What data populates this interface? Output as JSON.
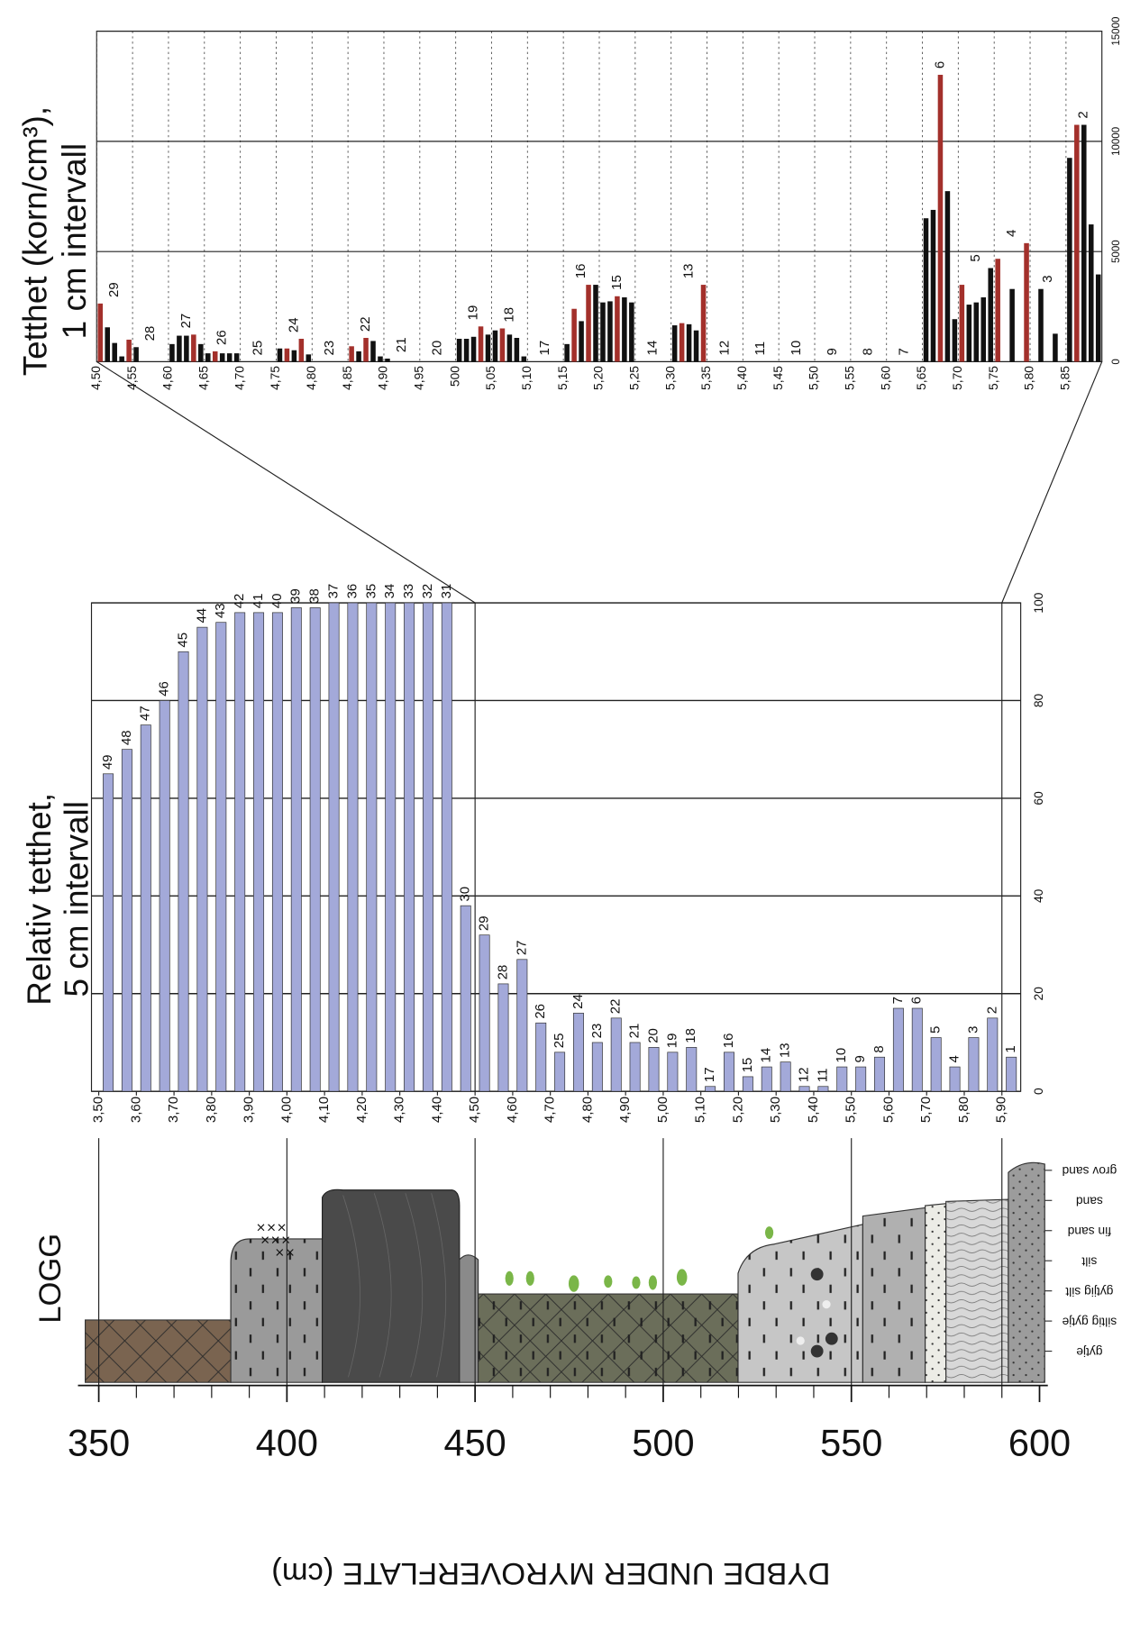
{
  "chart_data": [
    {
      "type": "bar",
      "title": [
        "Relativ tetthet,",
        "5 cm intervall"
      ],
      "categories": [
        "49",
        "48",
        "47",
        "46",
        "45",
        "44",
        "43",
        "42",
        "41",
        "40",
        "39",
        "38",
        "37",
        "36",
        "35",
        "34",
        "33",
        "32",
        "31",
        "30",
        "29",
        "28",
        "27",
        "26",
        "25",
        "24",
        "23",
        "22",
        "21",
        "20",
        "19",
        "18",
        "17",
        "16",
        "15",
        "14",
        "13",
        "12",
        "11",
        "10",
        "9",
        "8",
        "7",
        "6",
        "5",
        "4",
        "3",
        "2",
        "1"
      ],
      "values": [
        65,
        70,
        75,
        80,
        90,
        95,
        96,
        98,
        98,
        98,
        99,
        99,
        100,
        100,
        100,
        100,
        100,
        100,
        100,
        38,
        32,
        22,
        27,
        14,
        8,
        16,
        10,
        15,
        10,
        9,
        8,
        9,
        1,
        8,
        3,
        5,
        6,
        1,
        1,
        5,
        5,
        7,
        17,
        17,
        11,
        5,
        11,
        15,
        7
      ],
      "color": "#a3a9d9",
      "xlim": [
        350,
        595
      ],
      "xticks": [
        {
          "value": 350,
          "label": "3,50"
        },
        {
          "value": 360,
          "label": "3,60"
        },
        {
          "value": 370,
          "label": "3,70"
        },
        {
          "value": 380,
          "label": "3,80"
        },
        {
          "value": 390,
          "label": "3,90"
        },
        {
          "value": 400,
          "label": "4,00"
        },
        {
          "value": 410,
          "label": "4,10"
        },
        {
          "value": 420,
          "label": "4,20"
        },
        {
          "value": 430,
          "label": "4,30"
        },
        {
          "value": 440,
          "label": "4,40"
        },
        {
          "value": 450,
          "label": "4,50"
        },
        {
          "value": 460,
          "label": "4,60"
        },
        {
          "value": 470,
          "label": "4,70"
        },
        {
          "value": 480,
          "label": "4,80"
        },
        {
          "value": 490,
          "label": "4,90"
        },
        {
          "value": 500,
          "label": "5,00"
        },
        {
          "value": 510,
          "label": "5,10"
        },
        {
          "value": 520,
          "label": "5,20"
        },
        {
          "value": 530,
          "label": "5,30"
        },
        {
          "value": 540,
          "label": "5,40"
        },
        {
          "value": 550,
          "label": "5,50"
        },
        {
          "value": 560,
          "label": "5,60"
        },
        {
          "value": 570,
          "label": "5,70"
        },
        {
          "value": 580,
          "label": "5,80"
        },
        {
          "value": 590,
          "label": "5,90"
        }
      ],
      "ylim": [
        0,
        100
      ],
      "yticks": [
        0,
        20,
        40,
        60,
        80,
        100
      ],
      "grid": true
    },
    {
      "type": "bar",
      "title": [
        "Tetthet (korn/cm³),",
        "1 cm intervall"
      ],
      "series": [
        {
          "color": "#111111",
          "x": [
            451.5,
            452.5,
            453.5,
            455.5,
            460.5,
            461.5,
            462.5,
            464.5,
            465.5,
            467.5,
            468.5,
            469.5,
            475.5,
            477.5,
            479.5,
            486.5,
            488.5,
            489.5,
            490.5,
            500.5,
            501.5,
            502.5,
            504.5,
            505.5,
            507.5,
            508.5,
            509.5,
            515.5,
            517.5,
            519.5,
            520.5,
            521.5,
            523.5,
            524.5,
            530.5,
            532.5,
            533.5,
            565.5,
            566.5,
            568.5,
            569.5,
            571.5,
            572.5,
            573.5,
            574.5,
            577.5,
            581.5,
            583.5,
            585.5,
            587.5,
            588.5,
            589.5
          ],
          "values": [
            1560,
            850,
            240,
            660,
            800,
            1180,
            1180,
            800,
            380,
            380,
            380,
            380,
            600,
            520,
            330,
            470,
            940,
            240,
            140,
            1040,
            1040,
            1130,
            1230,
            1420,
            1230,
            1080,
            240,
            800,
            1840,
            3490,
            2690,
            2740,
            2920,
            2690,
            1650,
            1700,
            1420,
            6510,
            6890,
            7740,
            1930,
            2590,
            2690,
            2920,
            4250,
            3300,
            3300,
            1270,
            9250,
            10750,
            6230,
            3960
          ]
        },
        {
          "color": "#a3302b",
          "x": [
            450.5,
            454.5,
            463.5,
            466.5,
            476.5,
            478.5,
            485.5,
            487.5,
            503.5,
            506.5,
            516.5,
            518.5,
            522.5,
            531.5,
            534.5,
            567.5,
            570.5,
            575.5,
            579.5,
            586.5
          ],
          "values": [
            2640,
            1000,
            1230,
            470,
            600,
            1040,
            700,
            1080,
            1600,
            1510,
            2400,
            3490,
            2970,
            1750,
            3490,
            13020,
            3490,
            4670,
            5380,
            10750
          ]
        }
      ],
      "sample_labels": [
        "29",
        "28",
        "27",
        "26",
        "25",
        "24",
        "23",
        "22",
        "21",
        "20",
        "19",
        "18",
        "17",
        "16",
        "15",
        "14",
        "13",
        "12",
        "11",
        "10",
        "9",
        "8",
        "7",
        "6",
        "5",
        "4",
        "3",
        "2"
      ],
      "xlim": [
        450,
        590
      ],
      "xticks": [
        {
          "value": 450,
          "label": "4,50"
        },
        {
          "value": 455,
          "label": "4,55"
        },
        {
          "value": 460,
          "label": "4,60"
        },
        {
          "value": 465,
          "label": "4,65"
        },
        {
          "value": 470,
          "label": "4,70"
        },
        {
          "value": 475,
          "label": "4,75"
        },
        {
          "value": 480,
          "label": "4,80"
        },
        {
          "value": 485,
          "label": "4,85"
        },
        {
          "value": 490,
          "label": "4,90"
        },
        {
          "value": 495,
          "label": "4,95"
        },
        500,
        {
          "value": 505,
          "label": "5,05"
        },
        {
          "value": 510,
          "label": "5,10"
        },
        {
          "value": 515,
          "label": "5,15"
        },
        {
          "value": 520,
          "label": "5,20"
        },
        {
          "value": 525,
          "label": "5,25"
        },
        {
          "value": 530,
          "label": "5,30"
        },
        {
          "value": 535,
          "label": "5,35"
        },
        {
          "value": 540,
          "label": "5,40"
        },
        {
          "value": 545,
          "label": "5,45"
        },
        {
          "value": 550,
          "label": "5,50"
        },
        {
          "value": 555,
          "label": "5,55"
        },
        {
          "value": 560,
          "label": "5,60"
        },
        {
          "value": 565,
          "label": "5,65"
        },
        {
          "value": 570,
          "label": "5,70"
        },
        {
          "value": 575,
          "label": "5,75"
        },
        {
          "value": 580,
          "label": "5,80"
        },
        {
          "value": 585,
          "label": "5,85"
        }
      ],
      "ylim": [
        0,
        15000
      ],
      "yticks": [
        0,
        5000,
        10000,
        15000
      ],
      "grid": true
    },
    {
      "type": "log",
      "title": "LOGG",
      "lithology": [
        "gytje",
        "siltig gytje",
        "gytjig silt",
        "silt",
        "fin sand",
        "sand",
        "grov sand"
      ],
      "xlabel": "DYBDE UNDER MYROVERFLATE (cm)",
      "xlim": [
        350,
        600
      ],
      "xticks": [
        350,
        400,
        450,
        500,
        550,
        600
      ],
      "minor_ticks": [
        360,
        370,
        380,
        390,
        410,
        420,
        430,
        440,
        460,
        470,
        480,
        490,
        510,
        520,
        530,
        540,
        560,
        570,
        580,
        590
      ]
    }
  ]
}
